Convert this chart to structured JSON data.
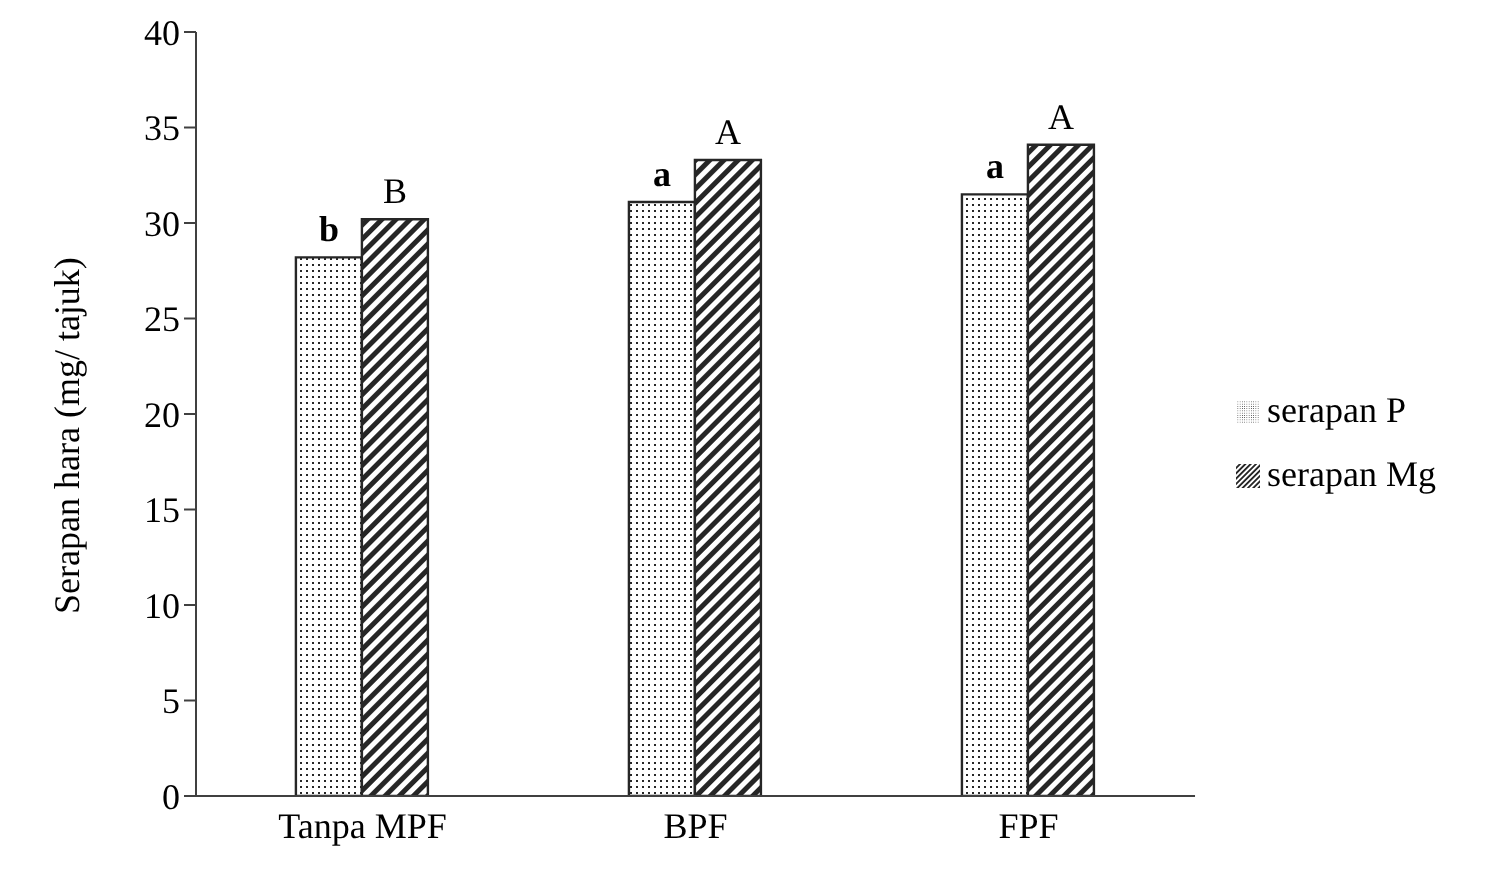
{
  "chart_data": {
    "type": "bar",
    "ylabel": "Serapan hara (mg/ tajuk)",
    "categories": [
      "Tanpa MPF",
      "BPF",
      "FPF"
    ],
    "series": [
      {
        "name": "serapan P",
        "color": "#262626",
        "values": [
          28.2,
          31.1,
          31.5
        ],
        "value_labels": [
          "b",
          "a",
          "a"
        ]
      },
      {
        "name": "serapan Mg",
        "color": "#262626",
        "values": [
          30.2,
          33.3,
          34.1
        ],
        "value_labels": [
          "B",
          "A",
          "A"
        ]
      }
    ],
    "ylim": [
      0,
      40
    ],
    "yticks": [
      0,
      5,
      10,
      15,
      20,
      25,
      30,
      35,
      40
    ],
    "grid": false,
    "legend": "right"
  }
}
